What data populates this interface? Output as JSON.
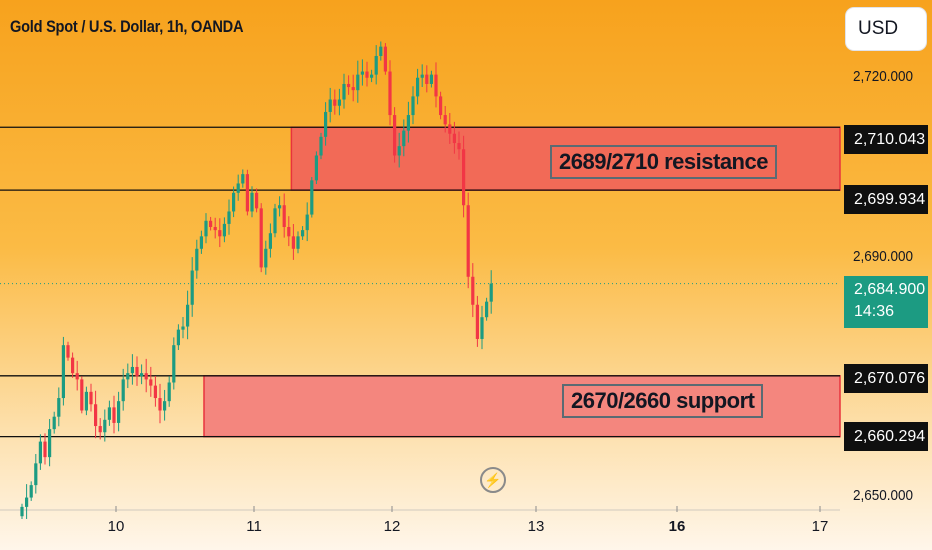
{
  "header": {
    "title": "Gold Spot / U.S. Dollar, 1h, OANDA"
  },
  "toolbar": {
    "currency_label": "USD"
  },
  "price_axis": {
    "ticks": [
      "2,720.000",
      "2,690.000",
      "2,650.000"
    ],
    "badges": [
      {
        "label": "2,710.043",
        "value": 2710.043
      },
      {
        "label": "2,699.934",
        "value": 2699.934
      },
      {
        "label": "2,670.076",
        "value": 2670.076
      },
      {
        "label": "2,660.294",
        "value": 2660.294
      }
    ],
    "current_price": "2,684.900",
    "countdown": "14:36"
  },
  "time_axis": {
    "ticks": [
      "10",
      "11",
      "12",
      "13",
      "16",
      "17"
    ],
    "bold_tick": "16"
  },
  "zones": {
    "resistance_label": "2689/2710 resistance",
    "support_label": "2670/2660 support"
  },
  "colors": {
    "up": "#1c9b82",
    "down": "#f23645",
    "resistance_fill": "#f26a57",
    "support_fill": "#f4867e",
    "zone_border": "#e8333d"
  },
  "icons": {
    "replay": "lightning-bolt-icon"
  },
  "chart_data": {
    "type": "candlestick",
    "title": "Gold Spot / U.S. Dollar, 1h, OANDA",
    "y_axis_unit": "USD",
    "ylim": [
      2648.5,
      2730.5
    ],
    "y_ticks": [
      2720,
      2690,
      2650
    ],
    "x_ticks": [
      "10",
      "11",
      "12",
      "13",
      "16",
      "17"
    ],
    "horizontal_lines": [
      2710.043,
      2699.934,
      2670.076,
      2660.294
    ],
    "zones": [
      {
        "label": "2689/2710 resistance",
        "low": 2699.934,
        "high": 2710.043,
        "from_candle": 59
      },
      {
        "label": "2670/2660 support",
        "low": 2660.294,
        "high": 2670.076,
        "from_candle": 40
      }
    ],
    "current_price": 2684.9,
    "closes": [
      2649.0,
      2650.5,
      2652.5,
      2656.0,
      2659.5,
      2657.0,
      2661.5,
      2663.5,
      2666.5,
      2675.0,
      2673.0,
      2670.5,
      2669.5,
      2664.5,
      2667.5,
      2665.5,
      2662.0,
      2661.0,
      2663.0,
      2665.0,
      2662.5,
      2666.0,
      2669.5,
      2670.5,
      2671.5,
      2670.0,
      2670.5,
      2669.5,
      2668.5,
      2666.5,
      2664.5,
      2666.0,
      2669.0,
      2675.0,
      2677.5,
      2678.0,
      2681.5,
      2687.0,
      2690.5,
      2692.5,
      2695.0,
      2694.0,
      2693.5,
      2692.5,
      2694.5,
      2696.5,
      2699.5,
      2701.0,
      2702.5,
      2696.5,
      2699.5,
      2697.0,
      2687.5,
      2690.5,
      2693.0,
      2697.0,
      2697.5,
      2694.0,
      2692.5,
      2690.5,
      2692.5,
      2693.5,
      2696.0,
      2701.5,
      2705.5,
      2708.5,
      2712.5,
      2714.5,
      2713.5,
      2714.5,
      2717.0,
      2716.5,
      2716.0,
      2718.5,
      2719.0,
      2718.0,
      2718.5,
      2721.5,
      2723.0,
      2719.0,
      2712.0,
      2705.5,
      2707.0,
      2709.5,
      2712.0,
      2715.0,
      2718.0,
      2718.5,
      2717.0,
      2718.5,
      2715.0,
      2712.0,
      2710.5,
      2709.0,
      2707.5,
      2706.5,
      2697.5,
      2686.0,
      2681.5,
      2676.0,
      2679.5,
      2682.0,
      2684.9
    ]
  }
}
